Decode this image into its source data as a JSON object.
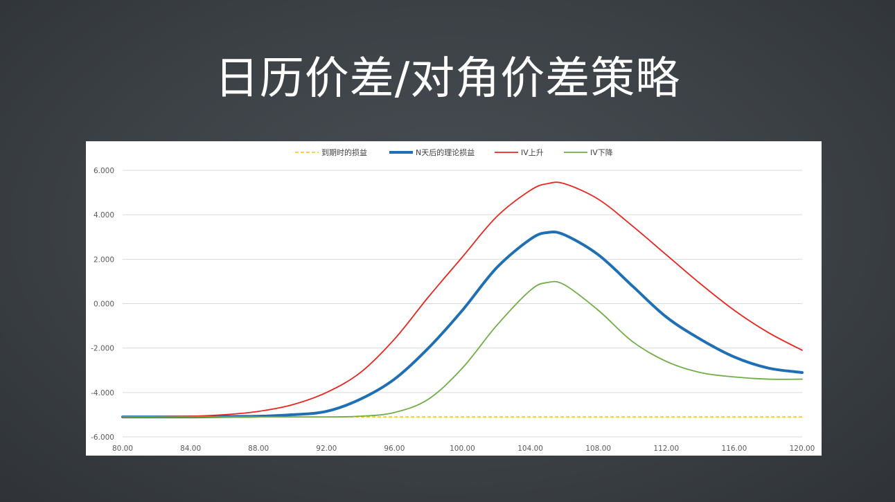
{
  "slide": {
    "title": "日历价差/对角价差策略"
  },
  "chart_data": {
    "type": "line",
    "legend_position": "top",
    "grid": true,
    "xlim": [
      80,
      120
    ],
    "ylim": [
      -6,
      6
    ],
    "x_ticks": [
      "80.00",
      "84.00",
      "88.00",
      "92.00",
      "96.00",
      "100.00",
      "104.00",
      "108.00",
      "112.00",
      "116.00",
      "120.00"
    ],
    "y_ticks": [
      "6.000",
      "4.000",
      "2.000",
      "0.000",
      "-2.000",
      "-4.000",
      "-6.000"
    ],
    "x_tick_values": [
      80,
      84,
      88,
      92,
      96,
      100,
      104,
      108,
      112,
      116,
      120
    ],
    "y_tick_values": [
      6,
      4,
      2,
      0,
      -2,
      -4,
      -6
    ],
    "series": [
      {
        "name": "到期时的损益",
        "color": "#FFC000",
        "style": "dashed",
        "width": 1.6,
        "x": [
          80,
          120
        ],
        "y": [
          -5.1,
          -5.1
        ]
      },
      {
        "name": "N天后的理论损益",
        "color": "#1F6FB4",
        "style": "solid",
        "width": 4,
        "x": [
          80,
          84,
          86,
          88,
          90,
          92,
          94,
          96,
          98,
          100,
          102,
          104,
          105,
          106,
          108,
          110,
          112,
          114,
          116,
          118,
          120
        ],
        "y": [
          -5.1,
          -5.1,
          -5.08,
          -5.07,
          -5.0,
          -4.85,
          -4.3,
          -3.4,
          -2.0,
          -0.3,
          1.6,
          2.9,
          3.2,
          3.1,
          2.2,
          0.8,
          -0.6,
          -1.6,
          -2.4,
          -2.9,
          -3.1
        ]
      },
      {
        "name": "IV上升",
        "color": "#E8251E",
        "style": "solid",
        "width": 1.8,
        "x": [
          80,
          84,
          86,
          88,
          90,
          92,
          94,
          96,
          98,
          100,
          102,
          104,
          105,
          106,
          108,
          110,
          112,
          114,
          116,
          118,
          120
        ],
        "y": [
          -5.1,
          -5.07,
          -5.0,
          -4.85,
          -4.55,
          -4.0,
          -3.1,
          -1.6,
          0.3,
          2.1,
          3.9,
          5.1,
          5.4,
          5.4,
          4.7,
          3.5,
          2.2,
          0.9,
          -0.3,
          -1.3,
          -2.1
        ]
      },
      {
        "name": "IV下降",
        "color": "#70AD47",
        "style": "solid",
        "width": 1.8,
        "x": [
          80,
          84,
          86,
          88,
          90,
          92,
          94,
          96,
          98,
          100,
          102,
          104,
          105,
          106,
          108,
          110,
          112,
          114,
          116,
          118,
          120
        ],
        "y": [
          -5.1,
          -5.1,
          -5.1,
          -5.1,
          -5.1,
          -5.1,
          -5.07,
          -4.9,
          -4.3,
          -2.9,
          -1.0,
          0.6,
          0.95,
          0.85,
          -0.3,
          -1.7,
          -2.6,
          -3.1,
          -3.3,
          -3.4,
          -3.4
        ]
      }
    ]
  }
}
